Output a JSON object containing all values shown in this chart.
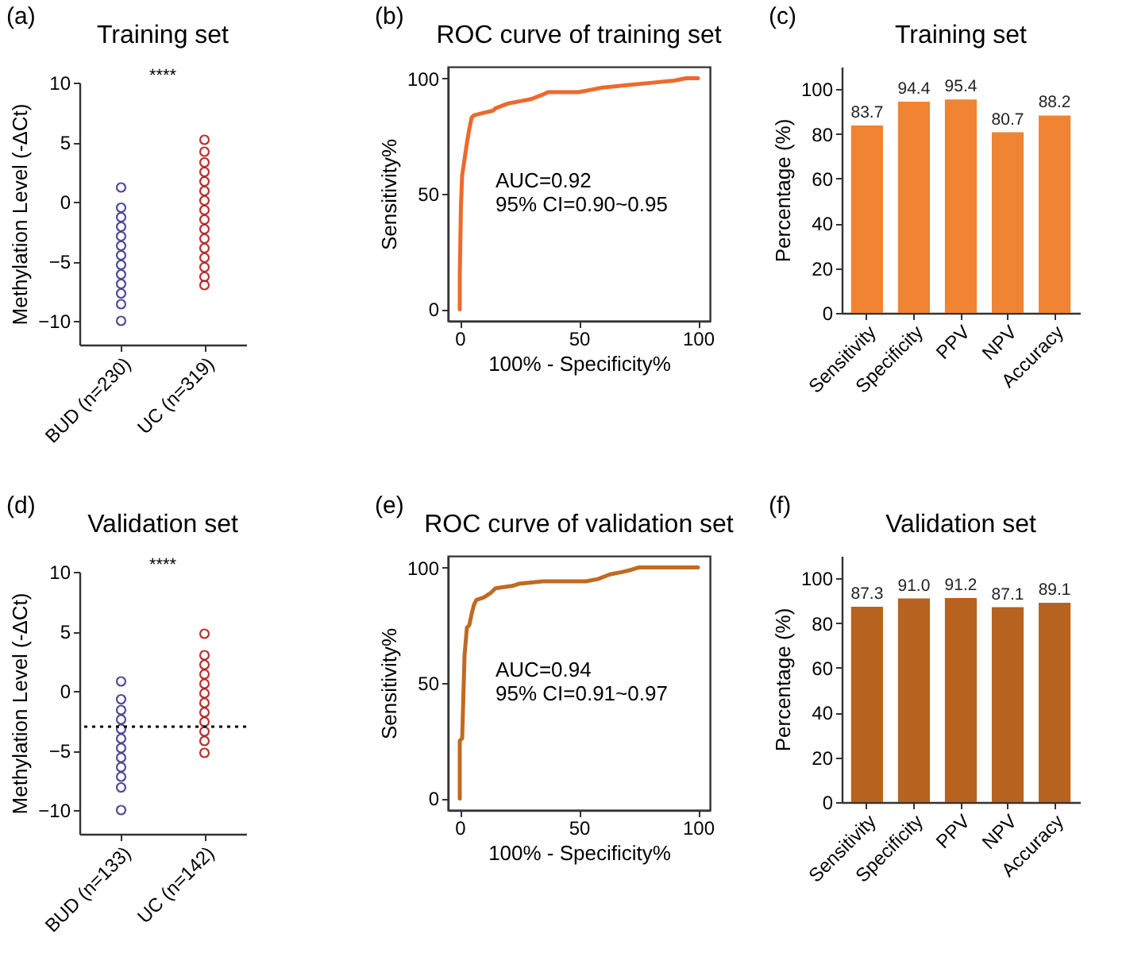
{
  "chart_data": [
    {
      "type": "scatter",
      "title": "Training set",
      "ylabel": "Methylation Level (-ΔCt)",
      "categories": [
        "BUD (n=230)",
        "UC (n=319)"
      ],
      "ylim": [
        -12,
        10
      ],
      "yticks": [
        -10,
        -5,
        0,
        5,
        10
      ],
      "grid": false,
      "marker": "circle",
      "annotations": [
        "(a)",
        "****"
      ],
      "series": [
        {
          "color": "#3a3a8c",
          "x": [
            "BUD (n=230)",
            "BUD (n=230)",
            "BUD (n=230)",
            "BUD (n=230)",
            "BUD (n=230)",
            "BUD (n=230)",
            "BUD (n=230)",
            "BUD (n=230)",
            "BUD (n=230)",
            "BUD (n=230)",
            "BUD (n=230)",
            "BUD (n=230)",
            "BUD (n=230)"
          ],
          "values": [
            1.2,
            -0.5,
            -1.3,
            -2.1,
            -2.9,
            -3.7,
            -4.5,
            -5.3,
            -6.1,
            -6.9,
            -7.7,
            -8.6,
            -10.0
          ]
        },
        {
          "color": "#b01c1c",
          "x": [
            "UC (n=319)",
            "UC (n=319)",
            "UC (n=319)",
            "UC (n=319)",
            "UC (n=319)",
            "UC (n=319)",
            "UC (n=319)",
            "UC (n=319)",
            "UC (n=319)",
            "UC (n=319)",
            "UC (n=319)",
            "UC (n=319)",
            "UC (n=319)",
            "UC (n=319)",
            "UC (n=319)",
            "UC (n=319)"
          ],
          "values": [
            5.2,
            4.2,
            3.3,
            2.5,
            1.7,
            0.9,
            0.1,
            -0.7,
            -1.5,
            -2.3,
            -3.1,
            -3.9,
            -4.7,
            -5.5,
            -6.3,
            -7.0
          ]
        }
      ]
    },
    {
      "type": "line",
      "title": "ROC curve of training set",
      "xlabel": "100% - Specificity%",
      "ylabel": "Sensitivity%",
      "xlim": [
        -5,
        105
      ],
      "ylim": [
        -5,
        105
      ],
      "xticks": [
        0,
        50,
        100
      ],
      "yticks": [
        0,
        50,
        100
      ],
      "grid": false,
      "annotations": [
        "(b)",
        "AUC=0.92",
        "95% CI=0.90~0.95"
      ],
      "series": [
        {
          "color": "#ec6a2c",
          "x": [
            0,
            0,
            0.5,
            1,
            2,
            3,
            4,
            5,
            6,
            10,
            14,
            15,
            20,
            25,
            30,
            35,
            37,
            50,
            55,
            60,
            70,
            80,
            90,
            95,
            100
          ],
          "values": [
            0,
            15,
            45,
            58,
            65,
            72,
            78,
            83,
            84,
            85,
            86,
            87,
            89,
            90,
            91,
            93,
            94,
            94,
            95,
            96,
            97,
            98,
            99,
            100,
            100
          ]
        }
      ]
    },
    {
      "type": "bar",
      "title": "Training set",
      "ylabel": "Percentage (%)",
      "categories": [
        "Sensitivity",
        "Specificity",
        "PPV",
        "NPV",
        "Accuracy"
      ],
      "ylim": [
        0,
        110
      ],
      "yticks": [
        0,
        20,
        40,
        60,
        80,
        100
      ],
      "grid": false,
      "data_labels": true,
      "annotations": [
        "(c)"
      ],
      "series": [
        {
          "color": "#f08433",
          "values": [
            83.7,
            94.4,
            95.4,
            80.7,
            88.2
          ]
        }
      ]
    },
    {
      "type": "scatter",
      "title": "Validation set",
      "ylabel": "Methylation Level (-ΔCt)",
      "categories": [
        "BUD (n=133)",
        "UC (n=142)"
      ],
      "ylim": [
        -12,
        10
      ],
      "yticks": [
        -10,
        -5,
        0,
        5,
        10
      ],
      "grid": false,
      "marker": "circle",
      "annotations": [
        "(d)",
        "****"
      ],
      "ref_lines": [
        {
          "axis": "y",
          "value": -3,
          "color": "#000000",
          "line_style": "dotted"
        }
      ],
      "series": [
        {
          "color": "#3a3a8c",
          "x": [
            "BUD (n=133)",
            "BUD (n=133)",
            "BUD (n=133)",
            "BUD (n=133)",
            "BUD (n=133)",
            "BUD (n=133)",
            "BUD (n=133)",
            "BUD (n=133)",
            "BUD (n=133)",
            "BUD (n=133)",
            "BUD (n=133)",
            "BUD (n=133)"
          ],
          "values": [
            0.8,
            -0.7,
            -1.6,
            -2.4,
            -3.2,
            -4.0,
            -4.8,
            -5.6,
            -6.4,
            -7.2,
            -8.1,
            -10.0
          ]
        },
        {
          "color": "#b01c1c",
          "x": [
            "UC (n=142)",
            "UC (n=142)",
            "UC (n=142)",
            "UC (n=142)",
            "UC (n=142)",
            "UC (n=142)",
            "UC (n=142)",
            "UC (n=142)",
            "UC (n=142)",
            "UC (n=142)",
            "UC (n=142)",
            "UC (n=142)"
          ],
          "values": [
            4.8,
            3.0,
            2.2,
            1.4,
            0.6,
            -0.2,
            -1.0,
            -1.8,
            -2.6,
            -3.4,
            -4.2,
            -5.2
          ]
        }
      ]
    },
    {
      "type": "line",
      "title": "ROC curve of validation set",
      "xlabel": "100% - Specificity%",
      "ylabel": "Sensitivity%",
      "xlim": [
        -5,
        105
      ],
      "ylim": [
        -5,
        105
      ],
      "xticks": [
        0,
        50,
        100
      ],
      "yticks": [
        0,
        50,
        100
      ],
      "grid": false,
      "annotations": [
        "(e)",
        "AUC=0.94",
        "95% CI=0.91~0.97"
      ],
      "series": [
        {
          "color": "#c06a22",
          "x": [
            0,
            0,
            1,
            2,
            3,
            4,
            5,
            6,
            7,
            10,
            13,
            15,
            22,
            25,
            35,
            53,
            58,
            63,
            68,
            72,
            75,
            100
          ],
          "values": [
            0,
            25,
            26,
            62,
            74,
            75,
            80,
            84,
            86,
            87,
            89,
            91,
            92,
            93,
            94,
            94,
            95,
            97,
            98,
            99,
            100,
            100
          ]
        }
      ]
    },
    {
      "type": "bar",
      "title": "Validation set",
      "ylabel": "Percentage (%)",
      "categories": [
        "Sensitivity",
        "Specificity",
        "PPV",
        "NPV",
        "Accuracy"
      ],
      "ylim": [
        0,
        110
      ],
      "yticks": [
        0,
        20,
        40,
        60,
        80,
        100
      ],
      "grid": false,
      "annotations": [
        "(f)"
      ],
      "series": [
        {
          "color": "#b8621f",
          "values": [
            87.3,
            91.0,
            91.2,
            87.1,
            89.1
          ],
          "value_labels": [
            "87.3",
            "91.0",
            "91.2",
            "87.1",
            "89.1"
          ]
        }
      ]
    }
  ]
}
